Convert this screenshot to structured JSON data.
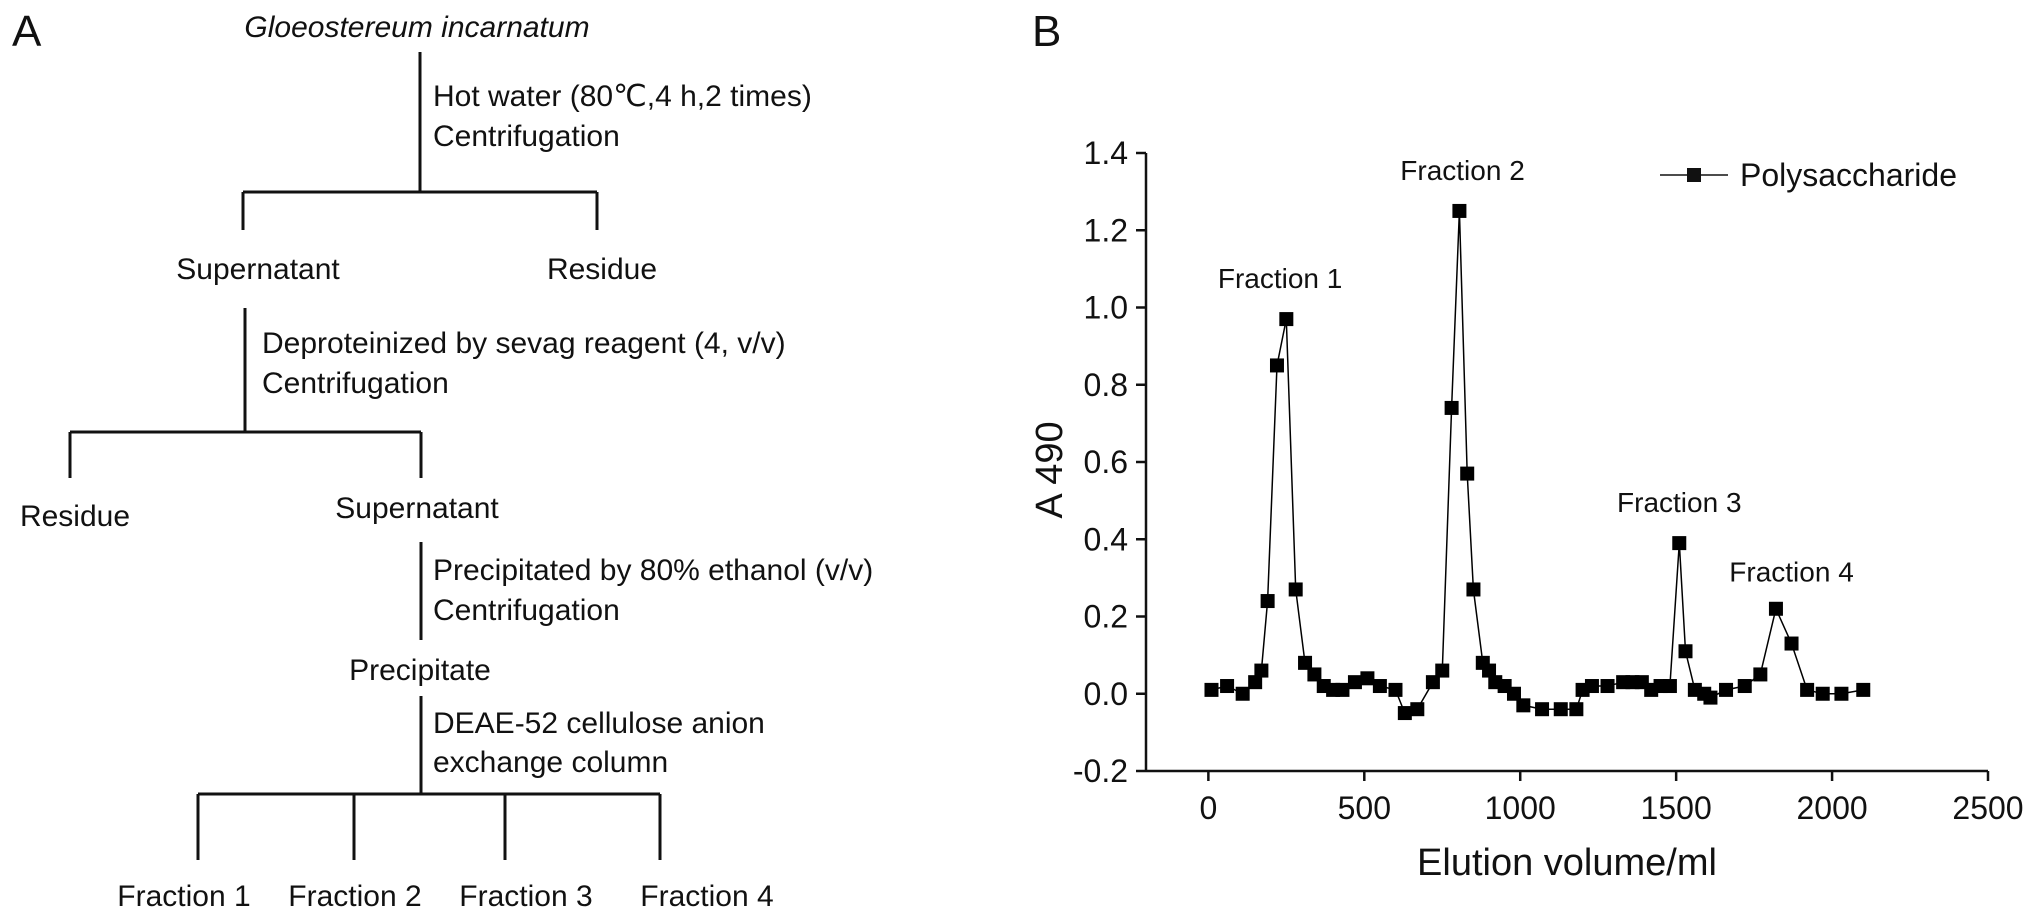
{
  "panel_a": {
    "letter": "A",
    "title": "Gloeostereum incarnatum",
    "step1_line1": "Hot water (80℃,4 h,2 times)",
    "step1_line2": "Centrifugation",
    "supernatant_1": "Supernatant",
    "residue_1": "Residue",
    "step2_line1": "Deproteinized by sevag reagent (4, v/v)",
    "step2_line2": "Centrifugation",
    "residue_2": "Residue",
    "supernatant_2": "Supernatant",
    "step3_line1": "Precipitated by 80% ethanol (v/v)",
    "step3_line2": "Centrifugation",
    "precipitate": "Precipitate",
    "step4_line1": "DEAE-52 cellulose anion",
    "step4_line2": "exchange column",
    "fractions": [
      "Fraction 1",
      "Fraction 2",
      "Fraction 3",
      "Fraction 4"
    ]
  },
  "chart_data": {
    "panel_letter": "B",
    "type": "line",
    "xlabel": "Elution volume/ml",
    "ylabel": "A 490",
    "xlim": [
      -200,
      2500
    ],
    "ylim": [
      -0.2,
      1.4
    ],
    "x_ticks": [
      0,
      500,
      1000,
      1500,
      2000,
      2500
    ],
    "y_ticks": [
      -0.2,
      0.0,
      0.2,
      0.4,
      0.6,
      0.8,
      1.0,
      1.2,
      1.4
    ],
    "x_tick_labels": [
      "0",
      "500",
      "1000",
      "1500",
      "2000",
      "2500"
    ],
    "y_tick_labels": [
      "-0.2",
      "0.0",
      "0.2",
      "0.4",
      "0.6",
      "0.8",
      "1.0",
      "1.2",
      "1.4"
    ],
    "grid": false,
    "legend_position": "top-right",
    "series": [
      {
        "name": "Polysaccharide",
        "color": "#000000",
        "marker": "square",
        "x": [
          10,
          60,
          110,
          150,
          170,
          190,
          220,
          250,
          280,
          310,
          340,
          370,
          400,
          430,
          470,
          510,
          550,
          600,
          630,
          670,
          720,
          750,
          780,
          805,
          830,
          850,
          880,
          900,
          920,
          950,
          980,
          1010,
          1070,
          1130,
          1180,
          1200,
          1230,
          1280,
          1330,
          1360,
          1390,
          1420,
          1450,
          1480,
          1510,
          1530,
          1560,
          1590,
          1610,
          1660,
          1720,
          1770,
          1820,
          1870,
          1920,
          1970,
          2030,
          2100
        ],
        "y": [
          0.01,
          0.02,
          0.0,
          0.03,
          0.06,
          0.24,
          0.85,
          0.97,
          0.27,
          0.08,
          0.05,
          0.02,
          0.01,
          0.01,
          0.03,
          0.04,
          0.02,
          0.01,
          -0.05,
          -0.04,
          0.03,
          0.06,
          0.74,
          1.25,
          0.57,
          0.27,
          0.08,
          0.06,
          0.03,
          0.02,
          0.0,
          -0.03,
          -0.04,
          -0.04,
          -0.04,
          0.01,
          0.02,
          0.02,
          0.03,
          0.03,
          0.03,
          0.01,
          0.02,
          0.02,
          0.39,
          0.11,
          0.01,
          0.0,
          -0.01,
          0.01,
          0.02,
          0.05,
          0.22,
          0.13,
          0.01,
          0.0,
          0.0,
          0.01
        ]
      }
    ],
    "annotations": [
      {
        "text": "Fraction 1",
        "x": 230,
        "y": 1.05
      },
      {
        "text": "Fraction 2",
        "x": 815,
        "y": 1.33
      },
      {
        "text": "Fraction 3",
        "x": 1510,
        "y": 0.47
      },
      {
        "text": "Fraction 4",
        "x": 1870,
        "y": 0.29
      }
    ]
  }
}
